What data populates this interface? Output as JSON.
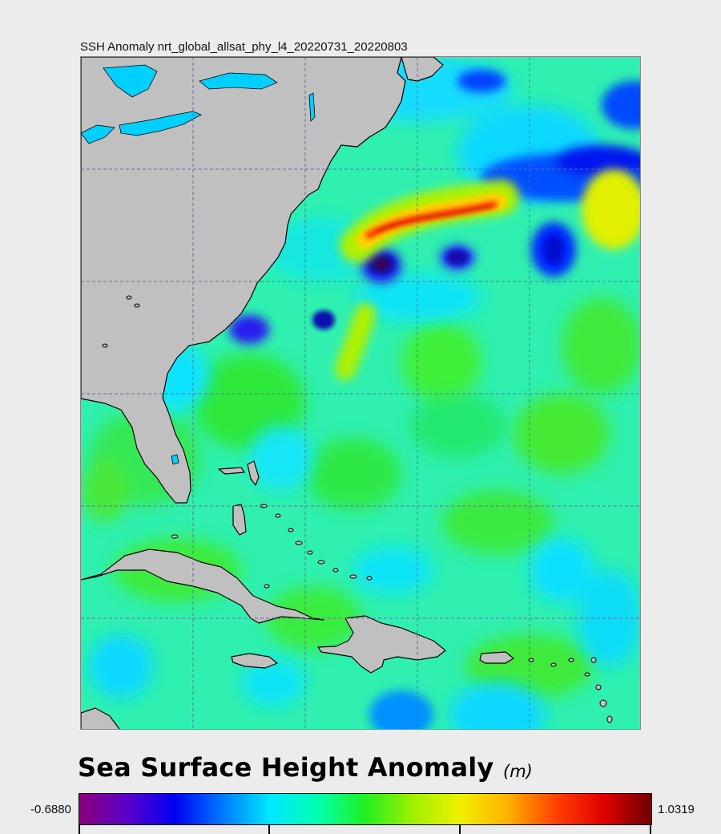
{
  "header": {
    "title": "SSH Anomaly nrt_global_allsat_phy_l4_20220731_20220803"
  },
  "map": {
    "type": "sea-surface-height-anomaly",
    "land_color": "#c0c0c0",
    "coastline_color": "#000000",
    "graticule_color": "#6a6a9a",
    "ocean_base_color": "#2ff0b0",
    "features": [
      "warm-gulf-stream-ridge",
      "cold-eddies",
      "lakes",
      "coastlines",
      "caribbean-islands"
    ]
  },
  "legend": {
    "title": "Sea Surface Height Anomaly",
    "unit": "(m)",
    "min_label": "-0.6880",
    "max_label": "1.0319",
    "colormap": [
      "#8a007a",
      "#5a00c8",
      "#0000f0",
      "#0078ff",
      "#00e8ff",
      "#00ffb0",
      "#20f020",
      "#a0f000",
      "#f0f000",
      "#ffb000",
      "#ff4000",
      "#e00000",
      "#700000"
    ]
  }
}
